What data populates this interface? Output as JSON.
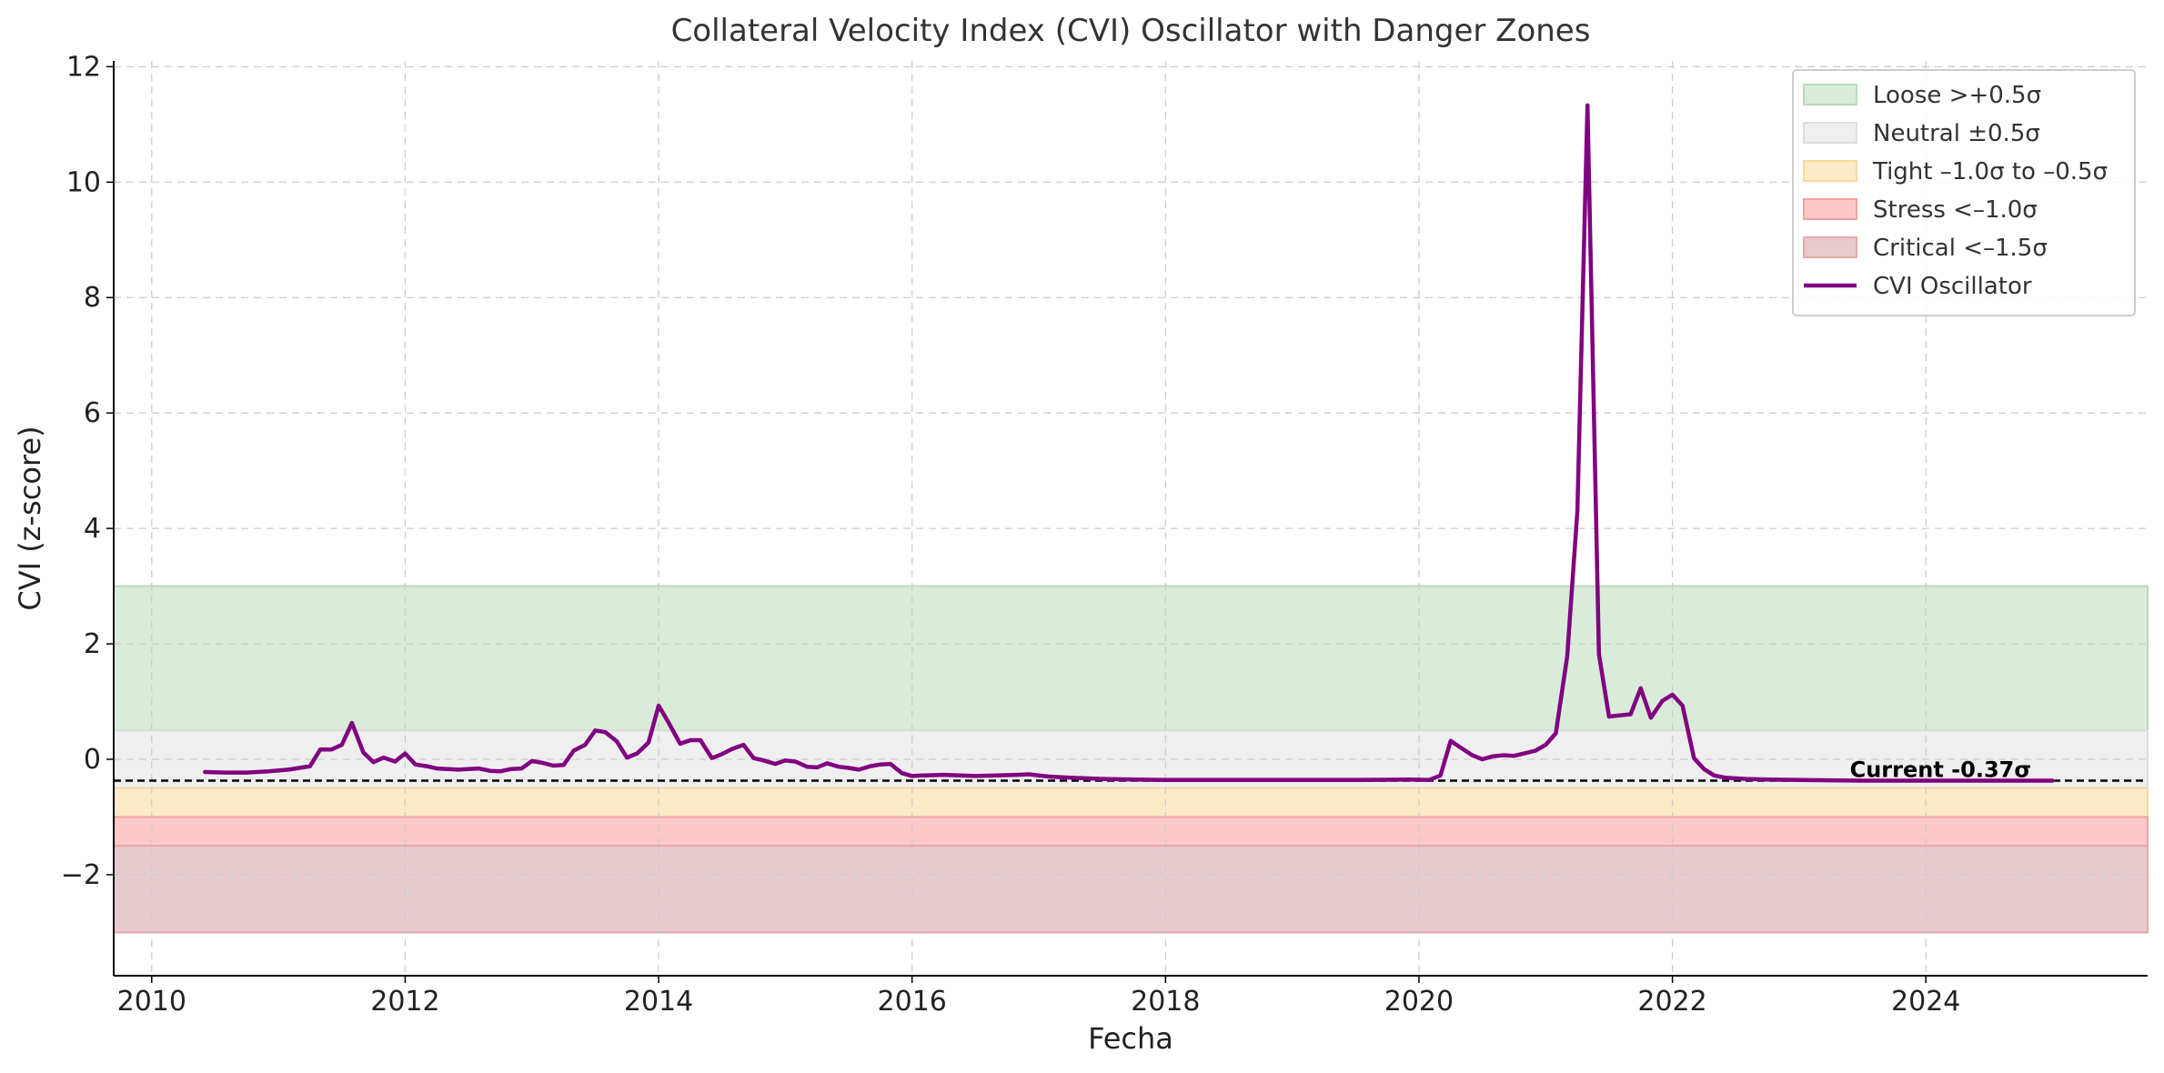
{
  "chart_data": {
    "type": "line",
    "title": "Collateral Velocity Index (CVI) Oscillator with Danger Zones",
    "xlabel": "Fecha",
    "ylabel": "CVI (z-score)",
    "xlim": [
      2009.7,
      2025.75
    ],
    "ylim": [
      -3.75,
      12.1
    ],
    "x_ticks": [
      2010,
      2012,
      2014,
      2016,
      2018,
      2020,
      2022,
      2024
    ],
    "y_ticks": [
      -2,
      0,
      2,
      4,
      6,
      8,
      10,
      12
    ],
    "y_tick_labels": [
      "−2",
      "0",
      "2",
      "4",
      "6",
      "8",
      "10",
      "12"
    ],
    "grid": true,
    "legend_position": "top-right",
    "zones": [
      {
        "name": "Loose >+0.5σ",
        "y0": 0.5,
        "y1": 3.0,
        "color": "#d9ecd9",
        "edge": "#b9d9b9"
      },
      {
        "name": "Neutral ±0.5σ",
        "y0": -0.5,
        "y1": 0.5,
        "color": "#efefef",
        "edge": "#dddddd"
      },
      {
        "name": "Tight –1.0σ to –0.5σ",
        "y0": -1.0,
        "y1": -0.5,
        "color": "#fdebc8",
        "edge": "#f5d9a0"
      },
      {
        "name": "Stress <–1.0σ",
        "y0": -1.5,
        "y1": -1.0,
        "color": "#fdc8c8",
        "edge": "#f0a0a0"
      },
      {
        "name": "Critical <–1.5σ",
        "y0": -3.0,
        "y1": -1.5,
        "color": "#e7cace",
        "edge": "#e8a8a8"
      }
    ],
    "current": {
      "value": -0.37,
      "label": "Current -0.37σ",
      "color": "#000000"
    },
    "series": [
      {
        "name": "CVI Oscillator",
        "color": "#800080",
        "x": [
          2010.42,
          2010.58,
          2010.75,
          2010.92,
          2011.08,
          2011.25,
          2011.33,
          2011.42,
          2011.5,
          2011.58,
          2011.67,
          2011.75,
          2011.83,
          2011.92,
          2012.0,
          2012.08,
          2012.17,
          2012.25,
          2012.42,
          2012.58,
          2012.67,
          2012.75,
          2012.83,
          2012.92,
          2013.0,
          2013.08,
          2013.17,
          2013.25,
          2013.33,
          2013.42,
          2013.5,
          2013.58,
          2013.67,
          2013.75,
          2013.83,
          2013.92,
          2014.0,
          2014.08,
          2014.17,
          2014.25,
          2014.33,
          2014.42,
          2014.5,
          2014.58,
          2014.67,
          2014.75,
          2014.83,
          2014.92,
          2015.0,
          2015.08,
          2015.17,
          2015.25,
          2015.33,
          2015.42,
          2015.5,
          2015.58,
          2015.67,
          2015.75,
          2015.83,
          2015.92,
          2016.0,
          2016.08,
          2016.25,
          2016.5,
          2016.67,
          2016.83,
          2016.92,
          2017.08,
          2017.25,
          2017.5,
          2017.75,
          2018.0,
          2018.5,
          2019.0,
          2019.5,
          2019.92,
          2020.08,
          2020.17,
          2020.25,
          2020.33,
          2020.42,
          2020.5,
          2020.58,
          2020.67,
          2020.75,
          2020.83,
          2020.92,
          2021.0,
          2021.08,
          2021.17,
          2021.25,
          2021.33,
          2021.42,
          2021.5,
          2021.58,
          2021.67,
          2021.75,
          2021.83,
          2021.92,
          2022.0,
          2022.08,
          2022.17,
          2022.25,
          2022.33,
          2022.42,
          2022.58,
          2022.75,
          2023.0,
          2023.5,
          2024.0,
          2024.5,
          2025.0
        ],
        "y": [
          -0.22,
          -0.23,
          -0.23,
          -0.21,
          -0.18,
          -0.12,
          0.17,
          0.17,
          0.25,
          0.63,
          0.12,
          -0.05,
          0.03,
          -0.04,
          0.1,
          -0.09,
          -0.12,
          -0.16,
          -0.18,
          -0.16,
          -0.2,
          -0.21,
          -0.17,
          -0.16,
          -0.03,
          -0.06,
          -0.11,
          -0.1,
          0.15,
          0.25,
          0.5,
          0.47,
          0.31,
          0.03,
          0.1,
          0.29,
          0.93,
          0.63,
          0.27,
          0.33,
          0.33,
          0.02,
          0.09,
          0.18,
          0.25,
          0.02,
          -0.02,
          -0.08,
          -0.02,
          -0.04,
          -0.13,
          -0.14,
          -0.07,
          -0.13,
          -0.15,
          -0.18,
          -0.12,
          -0.09,
          -0.08,
          -0.24,
          -0.29,
          -0.28,
          -0.27,
          -0.29,
          -0.28,
          -0.27,
          -0.26,
          -0.3,
          -0.32,
          -0.34,
          -0.35,
          -0.36,
          -0.36,
          -0.36,
          -0.36,
          -0.35,
          -0.36,
          -0.28,
          0.32,
          0.2,
          0.07,
          0.0,
          0.05,
          0.07,
          0.06,
          0.1,
          0.15,
          0.25,
          0.45,
          1.78,
          4.3,
          11.33,
          1.82,
          0.74,
          0.76,
          0.78,
          1.23,
          0.72,
          1.01,
          1.12,
          0.93,
          0.02,
          -0.17,
          -0.28,
          -0.32,
          -0.34,
          -0.35,
          -0.36,
          -0.37,
          -0.37,
          -0.37,
          -0.37
        ]
      }
    ]
  }
}
